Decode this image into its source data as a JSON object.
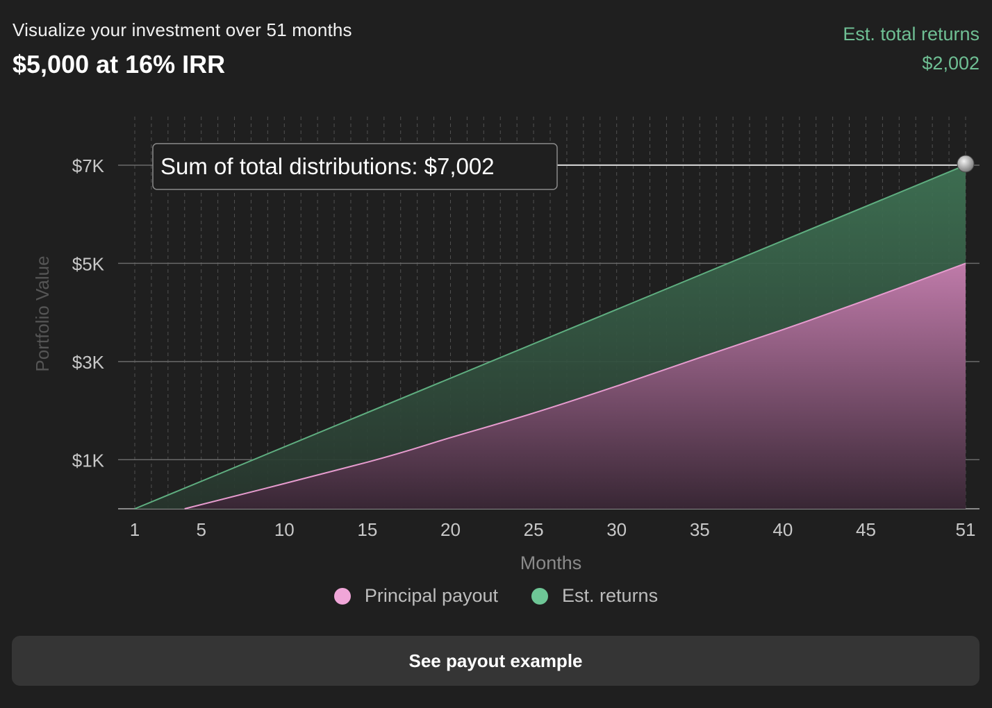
{
  "header": {
    "subtitle": "Visualize your investment over 51 months",
    "headline": "$5,000 at 16% IRR",
    "returns_label": "Est. total returns",
    "returns_value": "$2,002"
  },
  "chart_data": {
    "type": "area",
    "xlabel": "Months",
    "ylabel": "Portfolio Value",
    "x_ticks": [
      1,
      5,
      10,
      15,
      20,
      25,
      30,
      35,
      40,
      45,
      51
    ],
    "y_ticks": [
      1000,
      3000,
      5000,
      7000
    ],
    "y_tick_labels": [
      "$1K",
      "$3K",
      "$5K",
      "$7K"
    ],
    "xlim": [
      1,
      51
    ],
    "ylim": [
      0,
      7000
    ],
    "grid": "vertical dashed per month, horizontal solid at y ticks",
    "stacked": true,
    "series": [
      {
        "name": "Principal payout",
        "color": "#f0a6d8",
        "x": [
          4,
          15,
          20,
          25,
          30,
          35,
          40,
          45,
          51
        ],
        "values": [
          0,
          950,
          1450,
          1950,
          2500,
          3080,
          3650,
          4250,
          5000
        ]
      },
      {
        "name": "Est. returns",
        "color": "#6ec696",
        "x": [
          1,
          51
        ],
        "values": [
          0,
          2002
        ]
      }
    ],
    "total_line": {
      "x": [
        1,
        51
      ],
      "values": [
        0,
        7002
      ]
    },
    "tooltip": {
      "text": "Sum of total distributions: $7,002",
      "x": 51,
      "value": 7002
    }
  },
  "legend": {
    "items": [
      {
        "label": "Principal payout",
        "color": "#f0a6d8"
      },
      {
        "label": "Est. returns",
        "color": "#6ec696"
      }
    ]
  },
  "button": {
    "label": "See payout example"
  }
}
